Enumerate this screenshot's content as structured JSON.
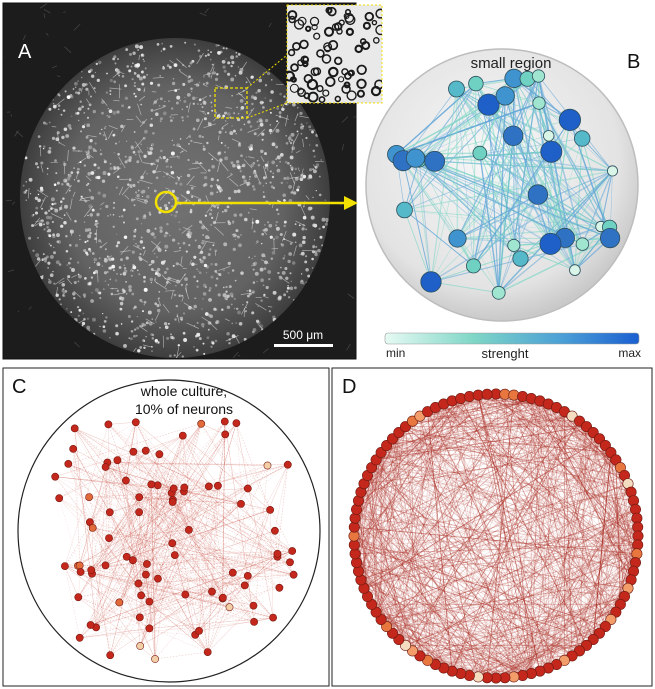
{
  "panels": {
    "a": {
      "letter": "A",
      "scale_bar_label": "500 μm"
    },
    "b": {
      "letter": "B",
      "title": "small region",
      "colorbar": {
        "min_label": "min",
        "max_label": "max",
        "label": "strenght",
        "color_min": "#d9f5ec",
        "color_max": "#1a5fd1"
      }
    },
    "c": {
      "letter": "C",
      "title_line1": "whole culture,",
      "title_line2": "10% of neurons"
    },
    "d": {
      "letter": "D"
    }
  },
  "colors": {
    "highlight_yellow": "#f2e000",
    "node_red": "#c4271b",
    "edge_red": "#b3382c",
    "node_teal": "#6fd1c1",
    "node_blue": "#2f72c4",
    "panel_border": "#222222"
  },
  "network_b": {
    "node_count": 35
  },
  "network_c": {
    "node_count": 90
  },
  "network_d": {
    "node_count": 100
  }
}
